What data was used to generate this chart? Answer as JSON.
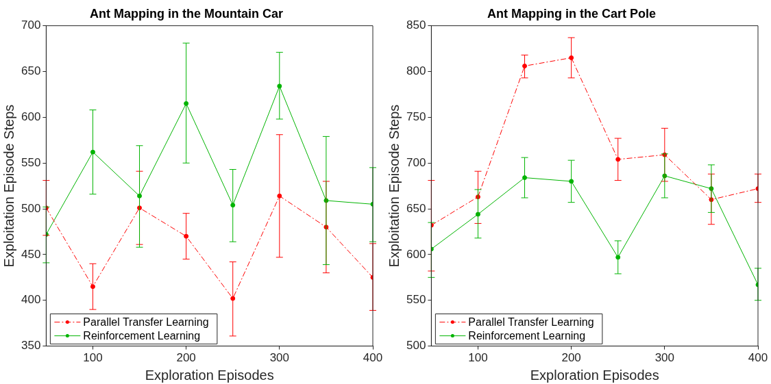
{
  "chart_data": [
    {
      "type": "line",
      "title": "Ant Mapping in the Mountain Car",
      "xlabel": "Exploration Episodes",
      "ylabel": "Exploitation Episode Steps",
      "x": [
        50,
        100,
        150,
        200,
        250,
        300,
        350,
        400
      ],
      "xlim": [
        50,
        400
      ],
      "xticks": [
        100,
        200,
        300,
        400
      ],
      "ylim": [
        350,
        700
      ],
      "yticks": [
        350,
        400,
        450,
        500,
        550,
        600,
        650,
        700
      ],
      "legend": "bottom left",
      "marker": "circle",
      "series": [
        {
          "name": "Parallel Transfer Learning",
          "color": "#ff0000",
          "line_style": "dashed",
          "values": [
            501,
            415,
            501,
            470,
            402,
            514,
            480,
            425
          ],
          "errors": [
            [
              471,
              531
            ],
            [
              390,
              440
            ],
            [
              461,
              541
            ],
            [
              445,
              495
            ],
            [
              361,
              442
            ],
            [
              447,
              581
            ],
            [
              430,
              530
            ],
            [
              389,
              462
            ]
          ]
        },
        {
          "name": "Reinforcement Learning",
          "color": "#00b400",
          "line_style": "solid",
          "values": [
            472,
            562,
            514,
            615,
            504,
            634,
            509,
            505
          ],
          "errors": [
            [
              441,
              502
            ],
            [
              516,
              608
            ],
            [
              458,
              569
            ],
            [
              550,
              681
            ],
            [
              464,
              543
            ],
            [
              598,
              671
            ],
            [
              439,
              579
            ],
            [
              464,
              545
            ]
          ]
        }
      ]
    },
    {
      "type": "line",
      "title": "Ant Mapping in the Cart Pole",
      "xlabel": "Exploration Episodes",
      "ylabel": "Exploitation Episode Steps",
      "x": [
        50,
        100,
        150,
        200,
        250,
        300,
        350,
        400
      ],
      "xlim": [
        50,
        400
      ],
      "xticks": [
        100,
        200,
        300,
        400
      ],
      "ylim": [
        500,
        850
      ],
      "yticks": [
        500,
        550,
        600,
        650,
        700,
        750,
        800,
        850
      ],
      "legend": "bottom left",
      "marker": "circle",
      "series": [
        {
          "name": "Parallel Transfer Learning",
          "color": "#ff0000",
          "line_style": "dashed",
          "values": [
            632,
            663,
            806,
            815,
            704,
            709,
            660,
            672
          ],
          "errors": [
            [
              582,
              681
            ],
            [
              634,
              691
            ],
            [
              793,
              818
            ],
            [
              793,
              837
            ],
            [
              681,
              727
            ],
            [
              680,
              738
            ],
            [
              633,
              688
            ],
            [
              657,
              688
            ]
          ]
        },
        {
          "name": "Reinforcement Learning",
          "color": "#00b400",
          "line_style": "solid",
          "values": [
            606,
            644,
            684,
            680,
            597,
            686,
            672,
            567
          ],
          "errors": [
            [
              575,
              635
            ],
            [
              618,
              671
            ],
            [
              662,
              706
            ],
            [
              657,
              703
            ],
            [
              579,
              615
            ],
            [
              662,
              710
            ],
            [
              646,
              698
            ],
            [
              550,
              585
            ]
          ]
        }
      ]
    }
  ]
}
